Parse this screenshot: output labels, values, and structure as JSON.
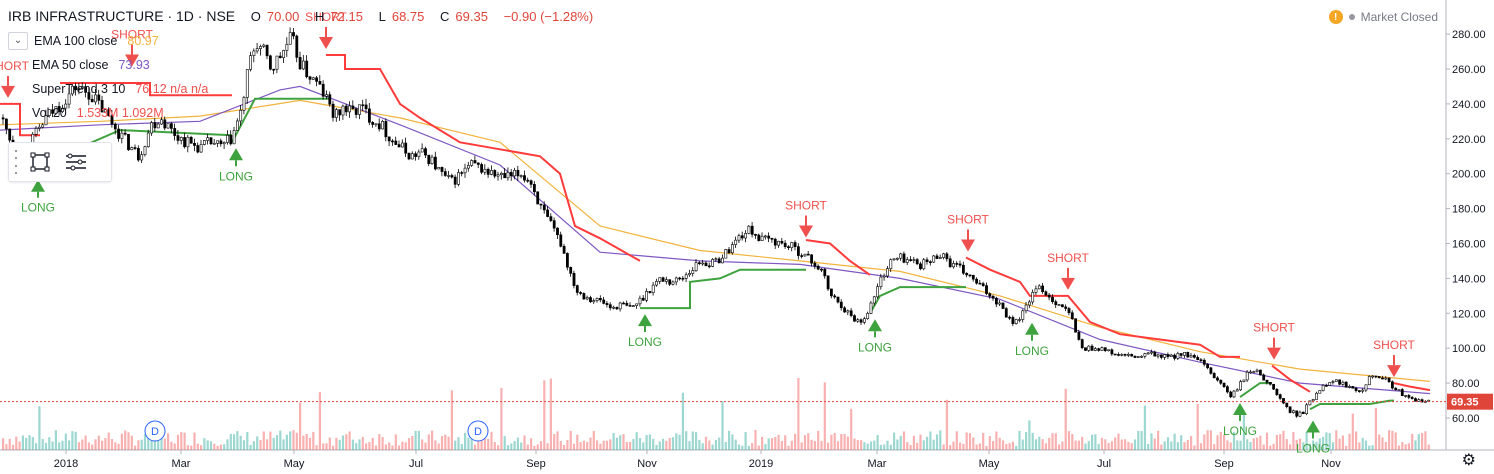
{
  "header": {
    "title": "IRB INFRASTRUCTURE · 1D · NSE",
    "ohlc": [
      {
        "k": "O",
        "v": "70.00"
      },
      {
        "k": "H",
        "v": "72.15"
      },
      {
        "k": "L",
        "v": "68.75"
      },
      {
        "k": "C",
        "v": "69.35"
      },
      {
        "k": "",
        "v": "−0.90 (−1.28%)"
      }
    ]
  },
  "market": {
    "status": "Market Closed",
    "warning_icon": "warning-icon"
  },
  "indicators": [
    {
      "label": "EMA 100 close",
      "value": "80.97",
      "color": "#f2b33d"
    },
    {
      "label": "EMA 50 close",
      "value": "73.93",
      "color": "#7e57c2"
    },
    {
      "label": "SuperTrend 3 10",
      "value": "76.12  n/a  n/a",
      "color": "#f0504d"
    },
    {
      "label": "Vol 20",
      "value": "1.533M  1.092M",
      "color": "#f0504d"
    }
  ],
  "colors": {
    "up": "#26a69a",
    "down": "#ef5350",
    "candle_body": "#000000",
    "ema100": "#f2b33d",
    "ema50": "#7e57c2",
    "supertrend_down": "#ff3b3b",
    "supertrend_up": "#3ea33e",
    "long": "#3ea33e",
    "short": "#f0504d",
    "price_tag": "#e0453a"
  },
  "chart_data": {
    "type": "candlestick",
    "ylim": [
      50,
      290
    ],
    "y_ticks": [
      "60.00",
      "80.00",
      "100.00",
      "120.00",
      "140.00",
      "160.00",
      "180.00",
      "200.00",
      "220.00",
      "240.00",
      "260.00",
      "280.00"
    ],
    "x_labels": [
      "2018",
      "Mar",
      "May",
      "Jul",
      "Sep",
      "Nov",
      "2019",
      "Mar",
      "May",
      "Jul",
      "Sep",
      "Nov"
    ],
    "last_price": "69.35",
    "series_path": [
      [
        0,
        232
      ],
      [
        8,
        222
      ],
      [
        20,
        205
      ],
      [
        30,
        218
      ],
      [
        45,
        232
      ],
      [
        60,
        240
      ],
      [
        75,
        250
      ],
      [
        90,
        245
      ],
      [
        100,
        238
      ],
      [
        110,
        230
      ],
      [
        120,
        222
      ],
      [
        130,
        215
      ],
      [
        138,
        210
      ],
      [
        150,
        228
      ],
      [
        160,
        232
      ],
      [
        170,
        225
      ],
      [
        180,
        220
      ],
      [
        190,
        217
      ],
      [
        200,
        215
      ],
      [
        210,
        218
      ],
      [
        220,
        215
      ],
      [
        230,
        220
      ],
      [
        240,
        235
      ],
      [
        248,
        262
      ],
      [
        255,
        275
      ],
      [
        262,
        270
      ],
      [
        270,
        260
      ],
      [
        280,
        268
      ],
      [
        290,
        278
      ],
      [
        300,
        262
      ],
      [
        310,
        255
      ],
      [
        318,
        250
      ],
      [
        326,
        242
      ],
      [
        334,
        232
      ],
      [
        342,
        238
      ],
      [
        350,
        235
      ],
      [
        360,
        238
      ],
      [
        370,
        232
      ],
      [
        380,
        228
      ],
      [
        390,
        220
      ],
      [
        400,
        215
      ],
      [
        410,
        210
      ],
      [
        420,
        212
      ],
      [
        430,
        208
      ],
      [
        440,
        200
      ],
      [
        450,
        195
      ],
      [
        460,
        200
      ],
      [
        470,
        205
      ],
      [
        480,
        203
      ],
      [
        490,
        200
      ],
      [
        500,
        198
      ],
      [
        510,
        198
      ],
      [
        520,
        200
      ],
      [
        530,
        195
      ],
      [
        540,
        180
      ],
      [
        550,
        170
      ],
      [
        560,
        160
      ],
      [
        568,
        145
      ],
      [
        576,
        133
      ],
      [
        584,
        130
      ],
      [
        592,
        128
      ],
      [
        600,
        127
      ],
      [
        610,
        123
      ],
      [
        620,
        125
      ],
      [
        630,
        123
      ],
      [
        640,
        128
      ],
      [
        650,
        135
      ],
      [
        660,
        140
      ],
      [
        670,
        138
      ],
      [
        680,
        140
      ],
      [
        690,
        145
      ],
      [
        700,
        150
      ],
      [
        710,
        148
      ],
      [
        720,
        152
      ],
      [
        730,
        158
      ],
      [
        740,
        165
      ],
      [
        750,
        168
      ],
      [
        760,
        162
      ],
      [
        770,
        162
      ],
      [
        780,
        160
      ],
      [
        790,
        158
      ],
      [
        800,
        155
      ],
      [
        810,
        150
      ],
      [
        820,
        145
      ],
      [
        830,
        130
      ],
      [
        840,
        125
      ],
      [
        850,
        118
      ],
      [
        860,
        115
      ],
      [
        870,
        125
      ],
      [
        880,
        140
      ],
      [
        890,
        150
      ],
      [
        900,
        152
      ],
      [
        910,
        150
      ],
      [
        920,
        148
      ],
      [
        930,
        150
      ],
      [
        940,
        155
      ],
      [
        950,
        148
      ],
      [
        960,
        145
      ],
      [
        970,
        140
      ],
      [
        980,
        135
      ],
      [
        990,
        130
      ],
      [
        1000,
        125
      ],
      [
        1010,
        115
      ],
      [
        1020,
        118
      ],
      [
        1030,
        130
      ],
      [
        1040,
        135
      ],
      [
        1050,
        128
      ],
      [
        1060,
        125
      ],
      [
        1070,
        118
      ],
      [
        1080,
        100
      ],
      [
        1090,
        100
      ],
      [
        1100,
        100
      ],
      [
        1110,
        97
      ],
      [
        1120,
        96
      ],
      [
        1130,
        95
      ],
      [
        1140,
        95
      ],
      [
        1150,
        97
      ],
      [
        1160,
        95
      ],
      [
        1170,
        95
      ],
      [
        1180,
        97
      ],
      [
        1190,
        95
      ],
      [
        1200,
        92
      ],
      [
        1210,
        85
      ],
      [
        1220,
        80
      ],
      [
        1230,
        72
      ],
      [
        1240,
        80
      ],
      [
        1250,
        88
      ],
      [
        1260,
        85
      ],
      [
        1270,
        78
      ],
      [
        1280,
        70
      ],
      [
        1290,
        63
      ],
      [
        1300,
        62
      ],
      [
        1310,
        70
      ],
      [
        1320,
        78
      ],
      [
        1330,
        82
      ],
      [
        1340,
        80
      ],
      [
        1350,
        78
      ],
      [
        1360,
        76
      ],
      [
        1370,
        85
      ],
      [
        1380,
        84
      ],
      [
        1390,
        79
      ],
      [
        1400,
        74
      ],
      [
        1410,
        70
      ],
      [
        1420,
        70
      ],
      [
        1428,
        69.35
      ]
    ],
    "ema100_path": [
      [
        0,
        228
      ],
      [
        100,
        230
      ],
      [
        200,
        233
      ],
      [
        300,
        242
      ],
      [
        400,
        232
      ],
      [
        500,
        218
      ],
      [
        600,
        170
      ],
      [
        700,
        156
      ],
      [
        800,
        150
      ],
      [
        900,
        144
      ],
      [
        1000,
        130
      ],
      [
        1100,
        112
      ],
      [
        1200,
        98
      ],
      [
        1300,
        88
      ],
      [
        1430,
        81
      ]
    ],
    "ema50_path": [
      [
        0,
        225
      ],
      [
        100,
        228
      ],
      [
        200,
        230
      ],
      [
        280,
        248
      ],
      [
        300,
        250
      ],
      [
        400,
        228
      ],
      [
        500,
        205
      ],
      [
        600,
        155
      ],
      [
        700,
        150
      ],
      [
        800,
        148
      ],
      [
        900,
        140
      ],
      [
        1000,
        128
      ],
      [
        1100,
        105
      ],
      [
        1200,
        92
      ],
      [
        1300,
        80
      ],
      [
        1430,
        74
      ]
    ],
    "supertrend_segments": [
      {
        "trend": "down",
        "points": [
          [
            0,
            240
          ],
          [
            20,
            240
          ],
          [
            20,
            222
          ],
          [
            40,
            222
          ]
        ]
      },
      {
        "trend": "up",
        "points": [
          [
            40,
            200
          ],
          [
            80,
            215
          ],
          [
            120,
            225
          ],
          [
            232,
            222
          ]
        ]
      },
      {
        "trend": "down",
        "points": [
          [
            60,
            252
          ],
          [
            150,
            252
          ],
          [
            150,
            245
          ],
          [
            232,
            245
          ]
        ]
      },
      {
        "trend": "up",
        "points": [
          [
            232,
            218
          ],
          [
            255,
            243
          ],
          [
            330,
            243
          ]
        ]
      },
      {
        "trend": "down",
        "points": [
          [
            326,
            268
          ],
          [
            345,
            268
          ],
          [
            345,
            260
          ],
          [
            380,
            260
          ],
          [
            400,
            240
          ],
          [
            420,
            232
          ],
          [
            440,
            225
          ],
          [
            460,
            218
          ],
          [
            480,
            216
          ],
          [
            500,
            214
          ],
          [
            540,
            210
          ],
          [
            560,
            200
          ],
          [
            575,
            170
          ],
          [
            600,
            163
          ],
          [
            640,
            150
          ]
        ]
      },
      {
        "trend": "up",
        "points": [
          [
            640,
            123
          ],
          [
            690,
            123
          ],
          [
            690,
            138
          ],
          [
            720,
            140
          ],
          [
            740,
            145
          ],
          [
            806,
            145
          ]
        ]
      },
      {
        "trend": "down",
        "points": [
          [
            806,
            162
          ],
          [
            830,
            160
          ],
          [
            850,
            150
          ],
          [
            870,
            142
          ]
        ]
      },
      {
        "trend": "up",
        "points": [
          [
            870,
            120
          ],
          [
            880,
            130
          ],
          [
            900,
            135
          ],
          [
            935,
            135
          ],
          [
            966,
            135
          ]
        ]
      },
      {
        "trend": "down",
        "points": [
          [
            966,
            152
          ],
          [
            990,
            145
          ],
          [
            1020,
            138
          ],
          [
            1030,
            130
          ],
          [
            1068,
            130
          ],
          [
            1090,
            115
          ],
          [
            1120,
            108
          ],
          [
            1160,
            105
          ],
          [
            1200,
            102
          ],
          [
            1220,
            95
          ],
          [
            1240,
            95
          ]
        ]
      },
      {
        "trend": "up",
        "points": [
          [
            1240,
            72
          ],
          [
            1260,
            80
          ],
          [
            1272,
            80
          ]
        ]
      },
      {
        "trend": "down",
        "points": [
          [
            1272,
            90
          ],
          [
            1290,
            82
          ],
          [
            1310,
            75
          ]
        ]
      },
      {
        "trend": "up",
        "points": [
          [
            1310,
            65
          ],
          [
            1320,
            68
          ],
          [
            1370,
            68
          ],
          [
            1390,
            70
          ],
          [
            1394,
            70
          ]
        ]
      },
      {
        "trend": "down",
        "points": [
          [
            1394,
            80
          ],
          [
            1410,
            78
          ],
          [
            1430,
            76
          ]
        ]
      }
    ],
    "signals": [
      {
        "type": "SHORT",
        "x": 8,
        "y": 240
      },
      {
        "type": "LONG",
        "x": 38,
        "y": 200
      },
      {
        "type": "SHORT",
        "x": 132,
        "y": 258
      },
      {
        "type": "LONG",
        "x": 236,
        "y": 218
      },
      {
        "type": "SHORT",
        "x": 326,
        "y": 268
      },
      {
        "type": "LONG",
        "x": 645,
        "y": 123
      },
      {
        "type": "SHORT",
        "x": 806,
        "y": 160
      },
      {
        "type": "LONG",
        "x": 875,
        "y": 120
      },
      {
        "type": "SHORT",
        "x": 968,
        "y": 152
      },
      {
        "type": "LONG",
        "x": 1032,
        "y": 118
      },
      {
        "type": "SHORT",
        "x": 1068,
        "y": 130
      },
      {
        "type": "LONG",
        "x": 1240,
        "y": 72
      },
      {
        "type": "SHORT",
        "x": 1274,
        "y": 90
      },
      {
        "type": "LONG",
        "x": 1313,
        "y": 62
      },
      {
        "type": "SHORT",
        "x": 1394,
        "y": 80
      }
    ],
    "events": [
      {
        "label": "D",
        "x": 155
      },
      {
        "label": "D",
        "x": 478
      }
    ]
  },
  "footer": {
    "settings_icon": "gear-icon"
  }
}
